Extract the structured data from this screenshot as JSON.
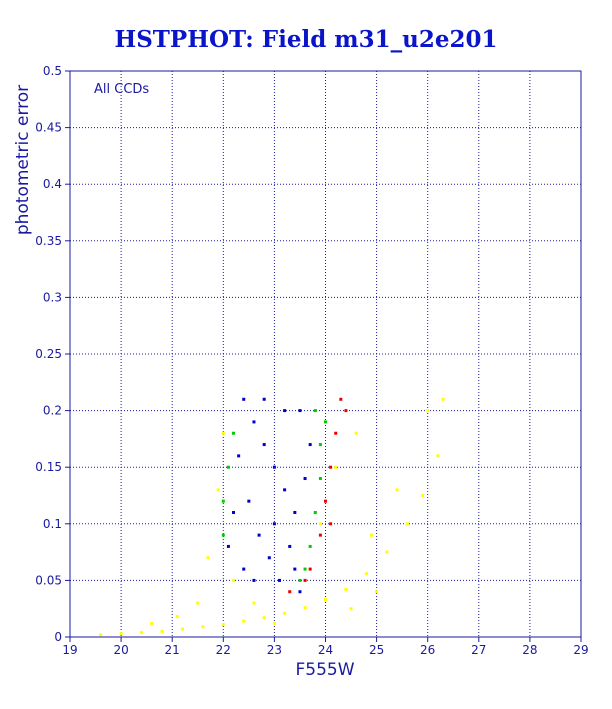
{
  "chart_data": {
    "type": "scatter",
    "title": "HSTPHOT: Field m31_u2e201",
    "xlabel": "F555W",
    "ylabel": "photometric error",
    "annotation": "All CCDs",
    "xlim": [
      19,
      29
    ],
    "ylim": [
      0,
      0.5
    ],
    "xticks": [
      "19",
      "20",
      "21",
      "22",
      "23",
      "24",
      "25",
      "26",
      "27",
      "28",
      "29"
    ],
    "yticks": [
      "0",
      "0.05",
      "0.1",
      "0.15",
      "0.2",
      "0.25",
      "0.3",
      "0.35",
      "0.4",
      "0.45",
      "0.5"
    ],
    "grid": true,
    "series": [
      {
        "color": "#ffff00",
        "points": [
          [
            19.6,
            0.002
          ],
          [
            20.0,
            0.003
          ],
          [
            20.4,
            0.004
          ],
          [
            20.8,
            0.005
          ],
          [
            21.2,
            0.007
          ],
          [
            21.6,
            0.009
          ],
          [
            22.0,
            0.011
          ],
          [
            22.4,
            0.014
          ],
          [
            22.8,
            0.017
          ],
          [
            23.2,
            0.021
          ],
          [
            23.6,
            0.026
          ],
          [
            24.0,
            0.033
          ],
          [
            24.4,
            0.042
          ],
          [
            24.8,
            0.056
          ],
          [
            25.2,
            0.075
          ],
          [
            25.6,
            0.1
          ],
          [
            25.9,
            0.125
          ],
          [
            26.2,
            0.16
          ],
          [
            26.0,
            0.2
          ],
          [
            26.3,
            0.21
          ],
          [
            25.4,
            0.13
          ],
          [
            24.9,
            0.09
          ],
          [
            25.0,
            0.04
          ],
          [
            24.5,
            0.025
          ],
          [
            21.7,
            0.07
          ],
          [
            21.9,
            0.13
          ],
          [
            22.0,
            0.18
          ],
          [
            22.2,
            0.05
          ],
          [
            21.5,
            0.03
          ],
          [
            21.1,
            0.018
          ],
          [
            20.6,
            0.012
          ],
          [
            23.9,
            0.1
          ],
          [
            24.2,
            0.15
          ],
          [
            24.6,
            0.18
          ],
          [
            22.6,
            0.03
          ],
          [
            23.0,
            0.012
          ]
        ]
      },
      {
        "color": "#0000cc",
        "points": [
          [
            22.4,
            0.21
          ],
          [
            22.6,
            0.19
          ],
          [
            22.8,
            0.17
          ],
          [
            23.0,
            0.15
          ],
          [
            23.2,
            0.13
          ],
          [
            23.4,
            0.11
          ],
          [
            22.3,
            0.16
          ],
          [
            22.5,
            0.12
          ],
          [
            22.7,
            0.09
          ],
          [
            22.9,
            0.07
          ],
          [
            23.1,
            0.05
          ],
          [
            23.3,
            0.08
          ],
          [
            23.5,
            0.2
          ],
          [
            23.7,
            0.17
          ],
          [
            23.6,
            0.14
          ],
          [
            22.2,
            0.11
          ],
          [
            22.1,
            0.08
          ],
          [
            22.4,
            0.06
          ],
          [
            22.6,
            0.05
          ],
          [
            23.0,
            0.1
          ],
          [
            23.2,
            0.2
          ],
          [
            22.8,
            0.21
          ],
          [
            23.4,
            0.06
          ],
          [
            23.5,
            0.04
          ]
        ]
      },
      {
        "color": "#00cc00",
        "points": [
          [
            23.8,
            0.2
          ],
          [
            23.9,
            0.17
          ],
          [
            23.9,
            0.14
          ],
          [
            23.8,
            0.11
          ],
          [
            23.7,
            0.08
          ],
          [
            23.6,
            0.06
          ],
          [
            22.2,
            0.18
          ],
          [
            22.1,
            0.15
          ],
          [
            22.0,
            0.12
          ],
          [
            24.0,
            0.19
          ],
          [
            23.5,
            0.05
          ],
          [
            22.0,
            0.09
          ]
        ]
      },
      {
        "color": "#ee0000",
        "points": [
          [
            24.3,
            0.21
          ],
          [
            24.2,
            0.18
          ],
          [
            24.1,
            0.15
          ],
          [
            24.0,
            0.12
          ],
          [
            23.9,
            0.09
          ],
          [
            23.7,
            0.06
          ],
          [
            23.3,
            0.04
          ],
          [
            24.4,
            0.2
          ],
          [
            24.1,
            0.1
          ],
          [
            23.6,
            0.05
          ]
        ]
      }
    ]
  }
}
